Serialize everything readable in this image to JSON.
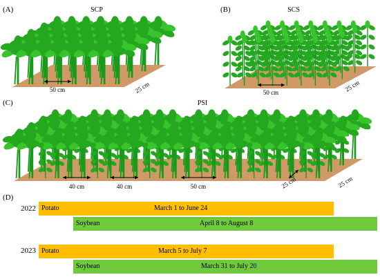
{
  "panels": {
    "a": {
      "letter": "(A)",
      "title": "SCP",
      "spacing_row": "50 cm",
      "spacing_depth": "25 cm"
    },
    "b": {
      "letter": "(B)",
      "title": "SCS",
      "spacing_row": "50 cm",
      "spacing_depth": "25 cm"
    },
    "c": {
      "letter": "(C)",
      "title": "PSI",
      "spacing_1": "40 cm",
      "spacing_2": "40 cm",
      "spacing_3": "50 cm",
      "spacing_4": "25 cm",
      "spacing_depth": "25 cm"
    },
    "d": {
      "letter": "(D)"
    }
  },
  "timeline": [
    {
      "year": "2022",
      "potato": {
        "label": "Potato",
        "dates": "March 1 to June 24"
      },
      "soybean": {
        "label": "Soybean",
        "dates": "April 8 to August 8"
      }
    },
    {
      "year": "2023",
      "potato": {
        "label": "Potato",
        "dates": "March 5 to July 7"
      },
      "soybean": {
        "label": "Soybean",
        "dates": "March 31 to July 20"
      }
    }
  ],
  "colors": {
    "soil": "#cf9a68",
    "leaf": "#25a81f",
    "leaf_light": "#38c52c",
    "stem": "#1a9a1a",
    "potato_bar": "#ffbf00",
    "soybean_bar": "#70c93c"
  }
}
